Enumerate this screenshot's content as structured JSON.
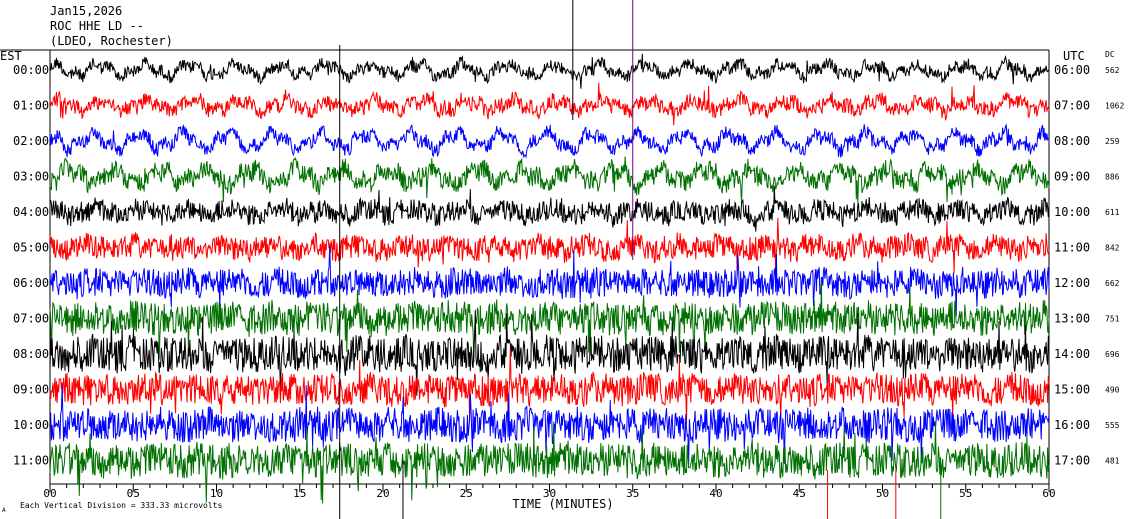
{
  "header": {
    "date": "Jan15,2026",
    "station": "ROC HHE LD --",
    "location": "(LDEO, Rochester)"
  },
  "labels": {
    "left_tz": "EST",
    "right_tz": "UTC",
    "dc": "DC",
    "footer_note": "Each Vertical Division =  333.33 microvolts",
    "footer_mark": "A"
  },
  "chart_data": {
    "type": "line",
    "title": "ROC HHE LD --",
    "xlabel": "TIME (MINUTES)",
    "ylabel": "",
    "xlim": [
      0,
      60
    ],
    "x_ticks": [
      "00",
      "05",
      "10",
      "15",
      "20",
      "25",
      "30",
      "35",
      "40",
      "45",
      "50",
      "55",
      "60"
    ],
    "trace_colors": [
      "#000000",
      "#ff0000",
      "#0000ff",
      "#007000"
    ],
    "rows": [
      {
        "est": "00:00",
        "utc": "06:00",
        "dc": "562",
        "color": "#000000",
        "noise": 0.45,
        "wave": 0.55
      },
      {
        "est": "01:00",
        "utc": "07:00",
        "dc": "1062",
        "color": "#ff0000",
        "noise": 0.55,
        "wave": 0.5
      },
      {
        "est": "02:00",
        "utc": "08:00",
        "dc": "259",
        "color": "#0000ff",
        "noise": 0.5,
        "wave": 0.75
      },
      {
        "est": "03:00",
        "utc": "09:00",
        "dc": "886",
        "color": "#007000",
        "noise": 0.7,
        "wave": 0.7
      },
      {
        "est": "04:00",
        "utc": "10:00",
        "dc": "611",
        "color": "#000000",
        "noise": 0.75,
        "wave": 0.35
      },
      {
        "est": "05:00",
        "utc": "11:00",
        "dc": "842",
        "color": "#ff0000",
        "noise": 0.85,
        "wave": 0.3
      },
      {
        "est": "06:00",
        "utc": "12:00",
        "dc": "662",
        "color": "#0000ff",
        "noise": 1.0,
        "wave": 0.2
      },
      {
        "est": "07:00",
        "utc": "13:00",
        "dc": "751",
        "color": "#007000",
        "noise": 1.15,
        "wave": 0.2
      },
      {
        "est": "08:00",
        "utc": "14:00",
        "dc": "696",
        "color": "#000000",
        "noise": 1.25,
        "wave": 0.2
      },
      {
        "est": "09:00",
        "utc": "15:00",
        "dc": "490",
        "color": "#ff0000",
        "noise": 1.1,
        "wave": 0.2
      },
      {
        "est": "10:00",
        "utc": "16:00",
        "dc": "555",
        "color": "#0000ff",
        "noise": 1.15,
        "wave": 0.2
      },
      {
        "est": "11:00",
        "utc": "17:00",
        "dc": "481",
        "color": "#007000",
        "noise": 1.2,
        "wave": 0.2
      }
    ]
  }
}
